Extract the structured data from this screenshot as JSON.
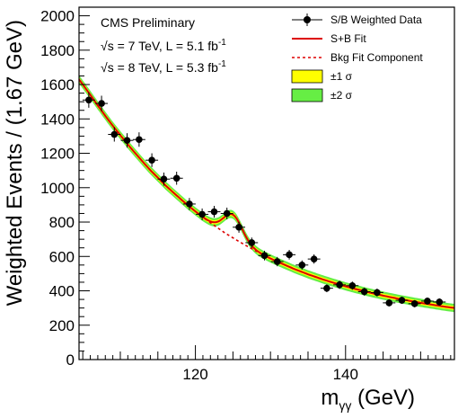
{
  "chart_data": {
    "type": "scatter",
    "xlabel_main": "m",
    "xlabel_sub": "γγ",
    "xlabel_unit": " (GeV)",
    "ylabel": "Weighted Events / (1.67 GeV)",
    "xlim": [
      104.5,
      154.5
    ],
    "ylim": [
      0,
      2050
    ],
    "x_ticks": [
      120,
      140
    ],
    "y_ticks": [
      0,
      200,
      400,
      600,
      800,
      1000,
      1200,
      1400,
      1600,
      1800,
      2000
    ],
    "annotations": {
      "title": "CMS Preliminary",
      "line1_prefix": "s = 7 TeV, L = 5.1 fb",
      "line2_prefix": "s = 8 TeV, L = 5.3 fb",
      "sup": "-1",
      "sqrt_symbol": "√"
    },
    "legend": {
      "position": "top-right",
      "entries": [
        {
          "label": "S/B Weighted Data",
          "kind": "marker"
        },
        {
          "label": "S+B Fit",
          "kind": "line",
          "color": "#dd0000"
        },
        {
          "label": "Bkg Fit Component",
          "kind": "dashed",
          "color": "#dd0000"
        },
        {
          "label": "±1 σ",
          "kind": "band",
          "color": "#ffff00"
        },
        {
          "label": "±2 σ",
          "kind": "band",
          "color": "#66ee44"
        }
      ]
    },
    "colors": {
      "fit": "#dd0000",
      "band1": "#ffff00",
      "band2": "#66ee44",
      "data": "#000000"
    },
    "series": [
      {
        "name": "S/B Weighted Data",
        "x": [
          105.8,
          107.5,
          109.2,
          110.9,
          112.5,
          114.2,
          115.8,
          117.5,
          119.2,
          120.9,
          122.5,
          124.2,
          125.8,
          127.5,
          129.2,
          130.9,
          132.5,
          134.2,
          135.8,
          137.5,
          139.2,
          140.9,
          142.5,
          144.2,
          145.8,
          147.5,
          149.2,
          150.9,
          152.5
        ],
        "y": [
          1510,
          1490,
          1310,
          1275,
          1280,
          1160,
          1050,
          1055,
          905,
          845,
          860,
          850,
          770,
          680,
          605,
          570,
          610,
          550,
          585,
          415,
          435,
          430,
          395,
          390,
          330,
          345,
          325,
          340,
          335
        ],
        "y_err": [
          45,
          45,
          42,
          42,
          42,
          40,
          38,
          38,
          35,
          34,
          34,
          34,
          32,
          30,
          28,
          27,
          28,
          27,
          27,
          23,
          24,
          24,
          23,
          23,
          21,
          21,
          21,
          21,
          21
        ]
      }
    ],
    "signal": {
      "mass": 125.0,
      "amplitude": 135,
      "sigma": 1.25
    },
    "background_curve": {
      "x": [
        104.5,
        105,
        106,
        107,
        108,
        109,
        110,
        111,
        112,
        113,
        114,
        115,
        116,
        117,
        118,
        119,
        120,
        121,
        122,
        123,
        124,
        125,
        126,
        127,
        128,
        129,
        130,
        131,
        132,
        133,
        134,
        135,
        136,
        137,
        138,
        139,
        140,
        141,
        142,
        143,
        144,
        145,
        146,
        147,
        148,
        149,
        150,
        151,
        152,
        153,
        154,
        154.5
      ],
      "y": [
        1630,
        1600,
        1540,
        1478,
        1418,
        1360,
        1305,
        1252,
        1200,
        1150,
        1102,
        1058,
        1014,
        974,
        935,
        897,
        862,
        828,
        796,
        765,
        735,
        708,
        682,
        657,
        633,
        610,
        588,
        568,
        549,
        530,
        513,
        496,
        481,
        466,
        452,
        439,
        426,
        414,
        403,
        392,
        382,
        372,
        363,
        354,
        346,
        338,
        330,
        323,
        316,
        309,
        303,
        300
      ]
    }
  }
}
